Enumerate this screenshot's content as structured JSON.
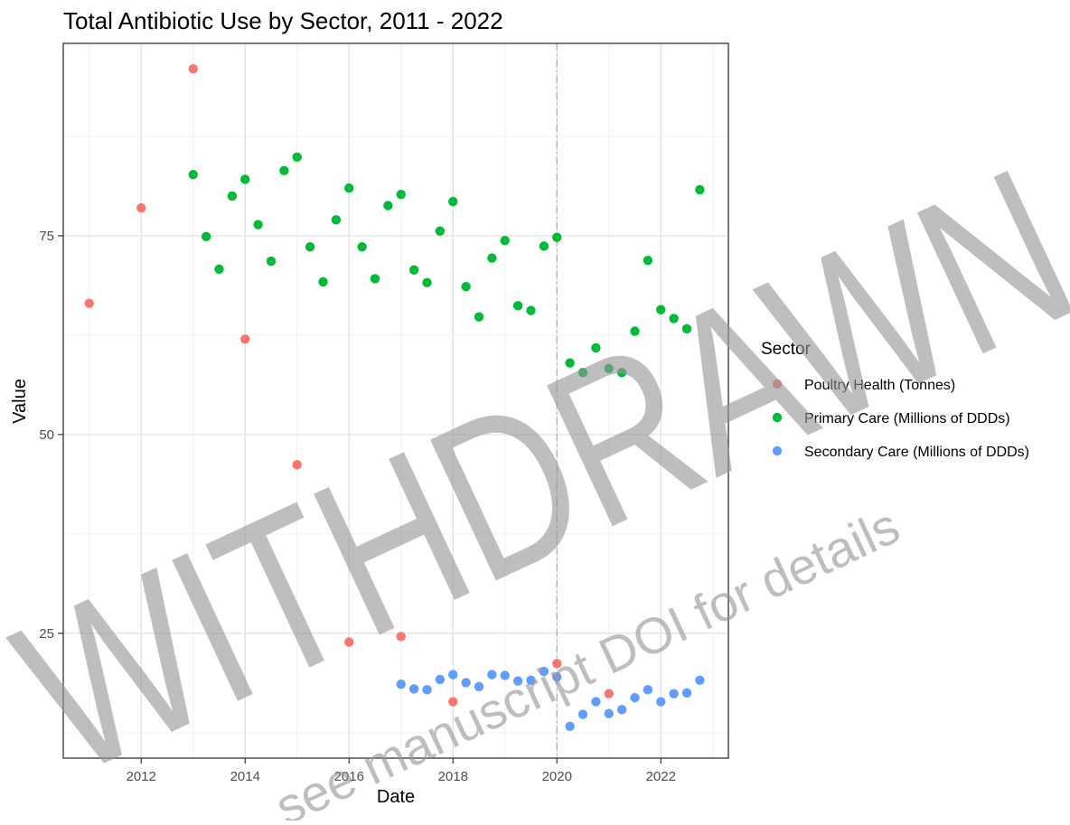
{
  "chart_data": {
    "type": "scatter",
    "title": "Total Antibiotic Use by Sector, 2011 - 2022",
    "xlabel": "Date",
    "ylabel": "Value",
    "xlim": [
      2010.5,
      2023.3
    ],
    "ylim": [
      9.3,
      99.2
    ],
    "x_ticks": [
      2012,
      2014,
      2016,
      2018,
      2020,
      2022
    ],
    "y_ticks": [
      25,
      50,
      75
    ],
    "x_tick_labels": [
      "2012",
      "2014",
      "2016",
      "2018",
      "2020",
      "2022"
    ],
    "y_tick_labels": [
      "25",
      "50",
      "75"
    ],
    "grid": true,
    "vertical_reference_line": {
      "x": 2020,
      "style": "dashed",
      "color": "#b3b3b3"
    },
    "legend": {
      "title": "Sector",
      "placement": "right"
    },
    "series": [
      {
        "name": "Poultry Health (Tonnes)",
        "color": "#F8766D",
        "points": [
          {
            "x": 2011.0,
            "y": 66.5
          },
          {
            "x": 2012.0,
            "y": 78.5
          },
          {
            "x": 2013.0,
            "y": 96.0
          },
          {
            "x": 2014.0,
            "y": 62.0
          },
          {
            "x": 2015.0,
            "y": 46.2
          },
          {
            "x": 2016.0,
            "y": 23.9
          },
          {
            "x": 2017.0,
            "y": 24.6
          },
          {
            "x": 2018.0,
            "y": 16.4
          },
          {
            "x": 2020.0,
            "y": 21.2
          },
          {
            "x": 2021.0,
            "y": 17.4
          }
        ]
      },
      {
        "name": "Primary Care (Millions of DDDs)",
        "color": "#00BA38",
        "points": [
          {
            "x": 2013.0,
            "y": 82.7
          },
          {
            "x": 2013.25,
            "y": 74.9
          },
          {
            "x": 2013.5,
            "y": 70.8
          },
          {
            "x": 2013.75,
            "y": 80.0
          },
          {
            "x": 2014.0,
            "y": 82.1
          },
          {
            "x": 2014.25,
            "y": 76.4
          },
          {
            "x": 2014.5,
            "y": 71.8
          },
          {
            "x": 2014.75,
            "y": 83.2
          },
          {
            "x": 2015.0,
            "y": 84.9
          },
          {
            "x": 2015.25,
            "y": 73.6
          },
          {
            "x": 2015.5,
            "y": 69.2
          },
          {
            "x": 2015.75,
            "y": 77.0
          },
          {
            "x": 2016.0,
            "y": 81.0
          },
          {
            "x": 2016.25,
            "y": 73.6
          },
          {
            "x": 2016.5,
            "y": 69.6
          },
          {
            "x": 2016.75,
            "y": 78.8
          },
          {
            "x": 2017.0,
            "y": 80.2
          },
          {
            "x": 2017.25,
            "y": 70.7
          },
          {
            "x": 2017.5,
            "y": 69.1
          },
          {
            "x": 2017.75,
            "y": 75.6
          },
          {
            "x": 2018.0,
            "y": 79.3
          },
          {
            "x": 2018.25,
            "y": 68.6
          },
          {
            "x": 2018.5,
            "y": 64.8
          },
          {
            "x": 2018.75,
            "y": 72.2
          },
          {
            "x": 2019.0,
            "y": 74.4
          },
          {
            "x": 2019.25,
            "y": 66.2
          },
          {
            "x": 2019.5,
            "y": 65.6
          },
          {
            "x": 2019.75,
            "y": 73.7
          },
          {
            "x": 2020.0,
            "y": 74.8
          },
          {
            "x": 2020.25,
            "y": 59.0
          },
          {
            "x": 2020.5,
            "y": 57.8
          },
          {
            "x": 2020.75,
            "y": 60.9
          },
          {
            "x": 2021.0,
            "y": 58.3
          },
          {
            "x": 2021.25,
            "y": 57.8
          },
          {
            "x": 2021.5,
            "y": 63.0
          },
          {
            "x": 2021.75,
            "y": 71.9
          },
          {
            "x": 2022.0,
            "y": 65.7
          },
          {
            "x": 2022.25,
            "y": 64.6
          },
          {
            "x": 2022.5,
            "y": 63.3
          },
          {
            "x": 2022.75,
            "y": 80.8
          }
        ]
      },
      {
        "name": "Secondary Care (Millions of DDDs)",
        "color": "#619CFF",
        "points": [
          {
            "x": 2017.0,
            "y": 18.6
          },
          {
            "x": 2017.25,
            "y": 18.0
          },
          {
            "x": 2017.5,
            "y": 17.9
          },
          {
            "x": 2017.75,
            "y": 19.2
          },
          {
            "x": 2018.0,
            "y": 19.8
          },
          {
            "x": 2018.25,
            "y": 18.8
          },
          {
            "x": 2018.5,
            "y": 18.3
          },
          {
            "x": 2018.75,
            "y": 19.8
          },
          {
            "x": 2019.0,
            "y": 19.7
          },
          {
            "x": 2019.25,
            "y": 19.0
          },
          {
            "x": 2019.5,
            "y": 19.1
          },
          {
            "x": 2019.75,
            "y": 20.2
          },
          {
            "x": 2020.0,
            "y": 19.5
          },
          {
            "x": 2020.25,
            "y": 13.3
          },
          {
            "x": 2020.5,
            "y": 14.8
          },
          {
            "x": 2020.75,
            "y": 16.4
          },
          {
            "x": 2021.0,
            "y": 14.9
          },
          {
            "x": 2021.25,
            "y": 15.4
          },
          {
            "x": 2021.5,
            "y": 16.9
          },
          {
            "x": 2021.75,
            "y": 17.9
          },
          {
            "x": 2022.0,
            "y": 16.4
          },
          {
            "x": 2022.25,
            "y": 17.4
          },
          {
            "x": 2022.5,
            "y": 17.5
          },
          {
            "x": 2022.75,
            "y": 19.1
          }
        ]
      }
    ]
  },
  "watermark": {
    "main": "WITHDRAWN",
    "sub": "see manuscript DOI for details"
  }
}
